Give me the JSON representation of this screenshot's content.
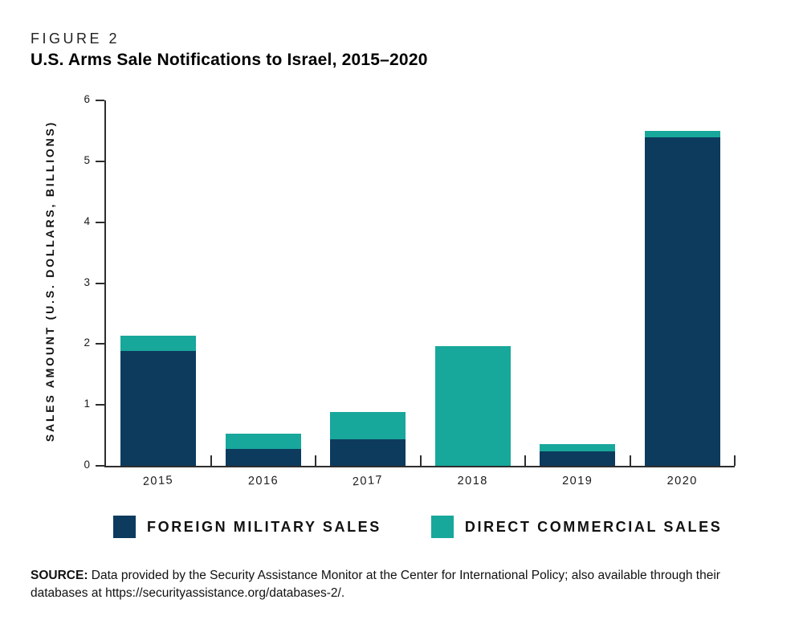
{
  "figure_label": "FIGURE 2",
  "title": "U.S. Arms Sale Notifications to Israel, 2015–2020",
  "chart_data": {
    "type": "bar",
    "stacked": true,
    "categories": [
      "2015",
      "2016",
      "2017",
      "2018",
      "2019",
      "2020"
    ],
    "series": [
      {
        "name": "FOREIGN MILITARY SALES",
        "color": "#0d3b5e",
        "values": [
          1.88,
          0.28,
          0.43,
          0,
          0.24,
          5.4
        ]
      },
      {
        "name": "DIRECT COMMERCIAL SALES",
        "color": "#18a79b",
        "values": [
          0.26,
          0.25,
          0.45,
          1.97,
          0.11,
          0.1
        ]
      }
    ],
    "title": "U.S. Arms Sale Notifications to Israel, 2015–2020",
    "xlabel": "",
    "ylabel": "SALES AMOUNT (U.S. DOLLARS, BILLIONS)",
    "ylim": [
      0,
      6
    ],
    "yticks": [
      0,
      1,
      2,
      3,
      4,
      5,
      6
    ],
    "grid": false,
    "legend_position": "bottom"
  },
  "source": {
    "label": "SOURCE:",
    "text": " Data provided by the Security Assistance Monitor at the Center for International Policy; also available through their databases at https://securityassistance.org/databases-2/."
  }
}
